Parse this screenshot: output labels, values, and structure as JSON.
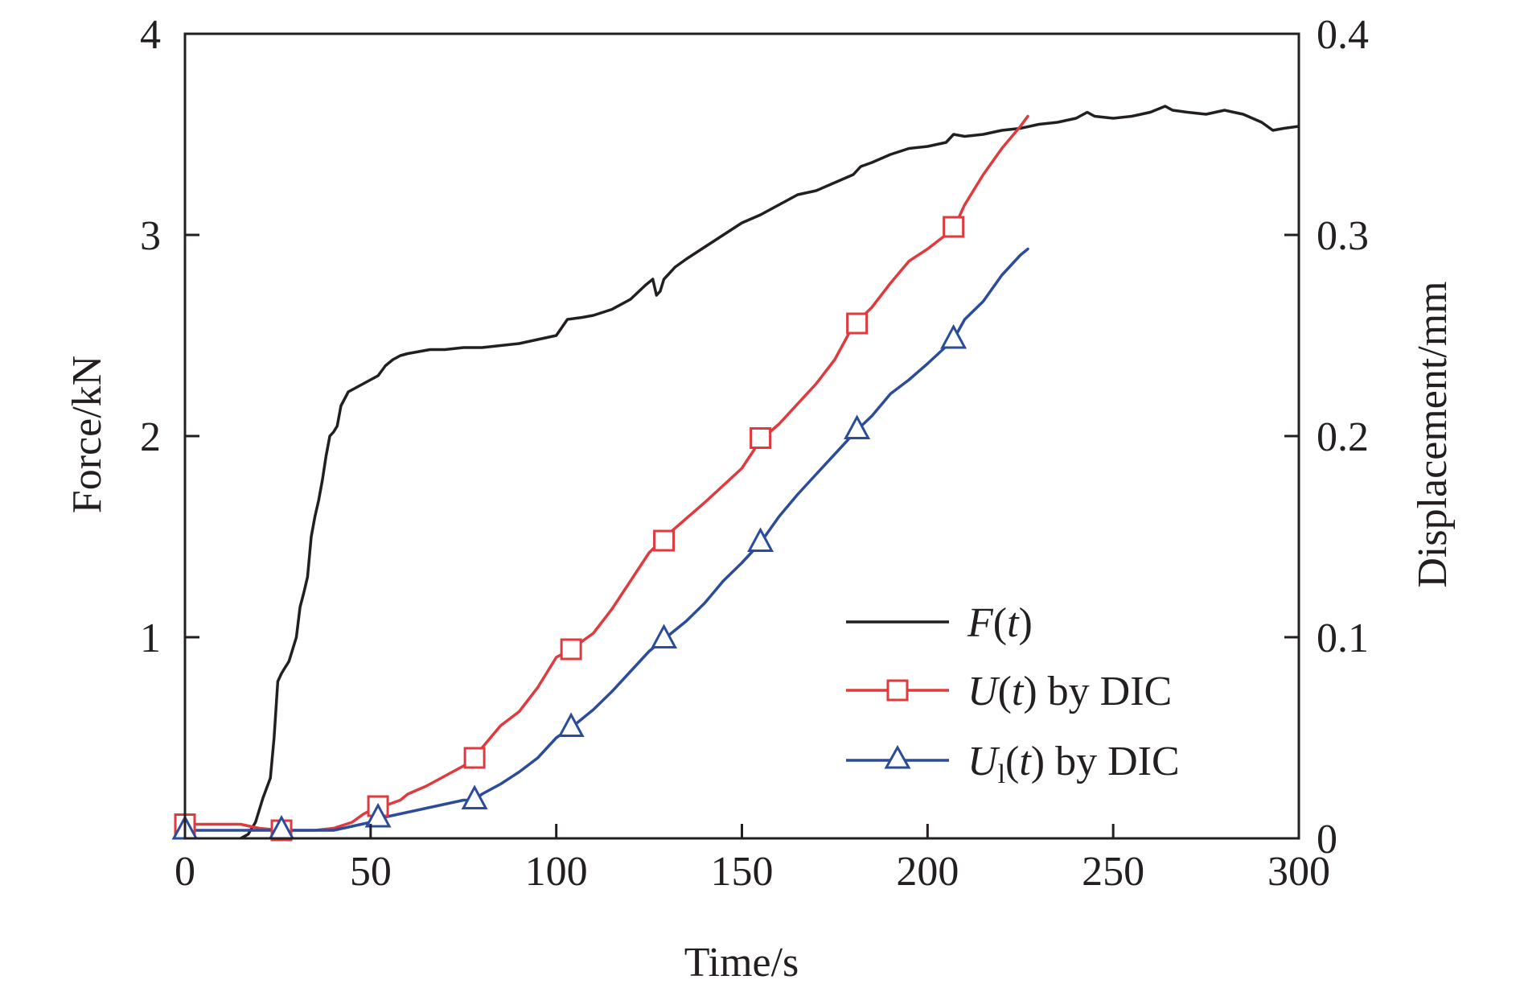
{
  "chart_data": {
    "type": "line",
    "xlabel": "Time/s",
    "ylabel_left": "Force/kN",
    "ylabel_right": "Displacement/mm",
    "xlim": [
      0,
      300
    ],
    "ylim_left": [
      0,
      4
    ],
    "ylim_right": [
      0,
      0.4
    ],
    "x_ticks": [
      "0",
      "50",
      "100",
      "150",
      "200",
      "250",
      "300"
    ],
    "y_left_ticks": [
      "1",
      "2",
      "3",
      "4"
    ],
    "y_right_ticks": [
      "0",
      "0.1",
      "0.2",
      "0.3",
      "0.4"
    ],
    "grid": false,
    "legend_position": "bottom-right",
    "legend": {
      "f_symbol": "F",
      "f_open": "(",
      "f_var": "t",
      "f_close": ")",
      "u_symbol": "U",
      "u_open": "(",
      "u_var": "t",
      "u_close": ")",
      "u_tail": " by DIC",
      "u1_symbol": "U",
      "u1_subscript": "l",
      "u1_open": "(",
      "u1_var": "t",
      "u1_close": ")",
      "u1_tail": " by DIC"
    },
    "series": [
      {
        "name": "F(t)",
        "axis": "left",
        "color": "#231f20",
        "marker": "none",
        "x": [
          0,
          5,
          10,
          14,
          17,
          19,
          21,
          23,
          24,
          25,
          26,
          27,
          28,
          30,
          31,
          32,
          33,
          34,
          35,
          36,
          37,
          38,
          39,
          40,
          41,
          42,
          44,
          46,
          48,
          50,
          52,
          54,
          56,
          58,
          60,
          63,
          66,
          70,
          75,
          80,
          85,
          90,
          95,
          100,
          103,
          107,
          110,
          115,
          120,
          124,
          126,
          127,
          128,
          129,
          130,
          132,
          135,
          140,
          145,
          150,
          155,
          160,
          165,
          170,
          175,
          180,
          182,
          185,
          190,
          195,
          200,
          205,
          207,
          210,
          215,
          220,
          225,
          230,
          235,
          240,
          243,
          245,
          250,
          255,
          260,
          264,
          266,
          270,
          275,
          280,
          285,
          290,
          293,
          296,
          300
        ],
        "y": [
          -0.05,
          -0.04,
          -0.03,
          -0.01,
          0.02,
          0.08,
          0.2,
          0.3,
          0.5,
          0.78,
          0.82,
          0.85,
          0.88,
          1.0,
          1.15,
          1.22,
          1.3,
          1.5,
          1.6,
          1.68,
          1.78,
          1.9,
          2.0,
          2.02,
          2.05,
          2.15,
          2.22,
          2.24,
          2.26,
          2.28,
          2.3,
          2.35,
          2.38,
          2.4,
          2.41,
          2.42,
          2.43,
          2.43,
          2.44,
          2.44,
          2.45,
          2.46,
          2.48,
          2.5,
          2.58,
          2.59,
          2.6,
          2.63,
          2.68,
          2.75,
          2.78,
          2.7,
          2.72,
          2.78,
          2.8,
          2.84,
          2.88,
          2.94,
          3.0,
          3.06,
          3.1,
          3.15,
          3.2,
          3.22,
          3.26,
          3.3,
          3.34,
          3.36,
          3.4,
          3.43,
          3.44,
          3.46,
          3.5,
          3.49,
          3.5,
          3.52,
          3.53,
          3.55,
          3.56,
          3.58,
          3.61,
          3.59,
          3.58,
          3.59,
          3.61,
          3.64,
          3.62,
          3.61,
          3.6,
          3.62,
          3.6,
          3.56,
          3.52,
          3.53,
          3.54
        ]
      },
      {
        "name": "U(t) by DIC",
        "axis": "right",
        "color": "#e03a3e",
        "marker": "square",
        "x": [
          0,
          10,
          15,
          20,
          26,
          30,
          35,
          40,
          45,
          48,
          52,
          55,
          58,
          60,
          65,
          70,
          75,
          78,
          80,
          85,
          90,
          95,
          100,
          104,
          110,
          115,
          120,
          125,
          130,
          140,
          150,
          155,
          160,
          170,
          175,
          180,
          185,
          190,
          195,
          200,
          207,
          210,
          215,
          220,
          225,
          227
        ],
        "y": [
          0.007,
          0.007,
          0.007,
          0.005,
          0.004,
          0.004,
          0.004,
          0.005,
          0.008,
          0.012,
          0.016,
          0.017,
          0.019,
          0.022,
          0.026,
          0.031,
          0.036,
          0.04,
          0.045,
          0.056,
          0.063,
          0.075,
          0.09,
          0.094,
          0.102,
          0.114,
          0.128,
          0.142,
          0.151,
          0.167,
          0.184,
          0.198,
          0.206,
          0.226,
          0.238,
          0.255,
          0.264,
          0.276,
          0.287,
          0.293,
          0.303,
          0.315,
          0.33,
          0.343,
          0.354,
          0.359
        ]
      },
      {
        "name": "U1(t) by DIC",
        "axis": "right",
        "color": "#2b4c9b",
        "marker": "triangle",
        "x": [
          0,
          10,
          20,
          26,
          30,
          40,
          45,
          50,
          52,
          55,
          60,
          65,
          70,
          75,
          78,
          80,
          85,
          90,
          95,
          100,
          104,
          110,
          115,
          120,
          125,
          129,
          135,
          140,
          145,
          150,
          155,
          160,
          165,
          170,
          175,
          181,
          185,
          190,
          195,
          200,
          207,
          210,
          215,
          220,
          225,
          227
        ],
        "y": [
          0.004,
          0.004,
          0.004,
          0.004,
          0.004,
          0.004,
          0.006,
          0.008,
          0.01,
          0.011,
          0.013,
          0.015,
          0.017,
          0.019,
          0.019,
          0.022,
          0.027,
          0.033,
          0.04,
          0.05,
          0.055,
          0.064,
          0.073,
          0.083,
          0.093,
          0.099,
          0.108,
          0.117,
          0.128,
          0.137,
          0.147,
          0.16,
          0.171,
          0.181,
          0.191,
          0.203,
          0.21,
          0.221,
          0.228,
          0.236,
          0.248,
          0.258,
          0.267,
          0.28,
          0.29,
          0.293
        ]
      }
    ],
    "markers": {
      "U(t) by DIC": {
        "x": [
          0,
          26,
          52,
          78,
          104,
          129,
          155,
          181,
          207
        ],
        "y": [
          0.007,
          0.004,
          0.016,
          0.04,
          0.094,
          0.148,
          0.199,
          0.256,
          0.304
        ]
      },
      "U1(t) by DIC": {
        "x": [
          0,
          26,
          52,
          78,
          104,
          129,
          155,
          181,
          207
        ],
        "y": [
          0.004,
          0.004,
          0.01,
          0.019,
          0.055,
          0.099,
          0.147,
          0.203,
          0.248
        ]
      }
    }
  }
}
